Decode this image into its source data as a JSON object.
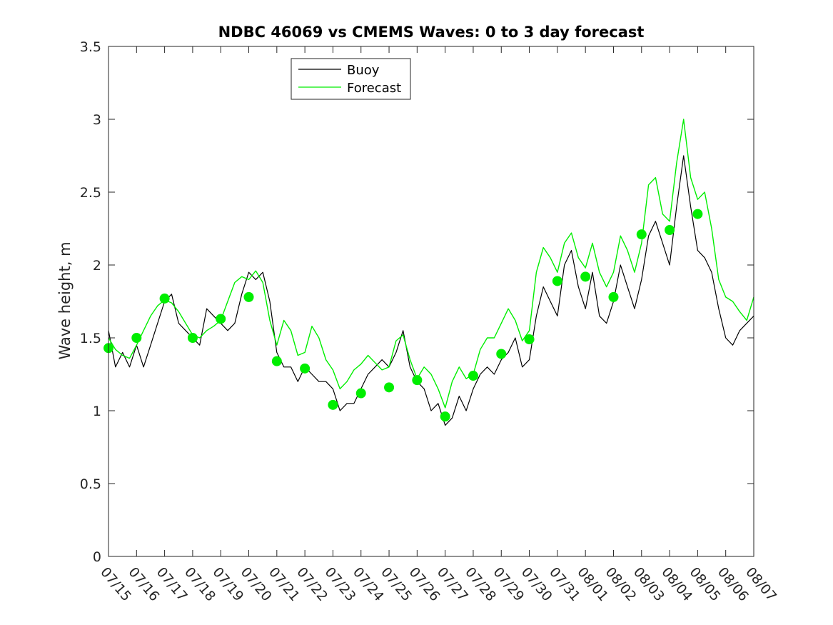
{
  "chart_data": {
    "type": "line",
    "title": "NDBC 46069 vs CMEMS Waves: 0 to 3 day forecast",
    "xlabel": "",
    "ylabel": "Wave height, m",
    "x_tick_labels": [
      "07/15",
      "07/16",
      "07/17",
      "07/18",
      "07/19",
      "07/20",
      "07/21",
      "07/22",
      "07/23",
      "07/24",
      "07/25",
      "07/26",
      "07/27",
      "07/28",
      "07/29",
      "07/30",
      "07/31",
      "08/01",
      "08/02",
      "08/03",
      "08/04",
      "08/05",
      "08/06",
      "08/07"
    ],
    "y_tick_labels": [
      "0",
      "0.5",
      "1",
      "1.5",
      "2",
      "2.5",
      "3",
      "3.5"
    ],
    "xlim_days": [
      0,
      23
    ],
    "ylim": [
      0,
      3.5
    ],
    "grid": false,
    "legend_position": "top-left",
    "colors": {
      "buoy": "#000000",
      "forecast": "#00ee00"
    },
    "series": [
      {
        "name": "Buoy",
        "points": [
          [
            0.0,
            1.55
          ],
          [
            0.25,
            1.3
          ],
          [
            0.5,
            1.4
          ],
          [
            0.75,
            1.3
          ],
          [
            1.0,
            1.45
          ],
          [
            1.25,
            1.3
          ],
          [
            1.5,
            1.45
          ],
          [
            1.75,
            1.6
          ],
          [
            2.0,
            1.75
          ],
          [
            2.25,
            1.8
          ],
          [
            2.5,
            1.6
          ],
          [
            2.75,
            1.55
          ],
          [
            3.0,
            1.5
          ],
          [
            3.25,
            1.45
          ],
          [
            3.5,
            1.7
          ],
          [
            3.75,
            1.65
          ],
          [
            4.0,
            1.6
          ],
          [
            4.25,
            1.55
          ],
          [
            4.5,
            1.6
          ],
          [
            4.75,
            1.8
          ],
          [
            5.0,
            1.95
          ],
          [
            5.25,
            1.9
          ],
          [
            5.5,
            1.95
          ],
          [
            5.75,
            1.75
          ],
          [
            6.0,
            1.4
          ],
          [
            6.25,
            1.3
          ],
          [
            6.5,
            1.3
          ],
          [
            6.75,
            1.2
          ],
          [
            7.0,
            1.3
          ],
          [
            7.25,
            1.25
          ],
          [
            7.5,
            1.2
          ],
          [
            7.75,
            1.2
          ],
          [
            8.0,
            1.15
          ],
          [
            8.25,
            1.0
          ],
          [
            8.5,
            1.05
          ],
          [
            8.75,
            1.05
          ],
          [
            9.0,
            1.15
          ],
          [
            9.25,
            1.25
          ],
          [
            9.5,
            1.3
          ],
          [
            9.75,
            1.35
          ],
          [
            10.0,
            1.3
          ],
          [
            10.25,
            1.4
          ],
          [
            10.5,
            1.55
          ],
          [
            10.75,
            1.3
          ],
          [
            11.0,
            1.2
          ],
          [
            11.25,
            1.15
          ],
          [
            11.5,
            1.0
          ],
          [
            11.75,
            1.05
          ],
          [
            12.0,
            0.9
          ],
          [
            12.25,
            0.95
          ],
          [
            12.5,
            1.1
          ],
          [
            12.75,
            1.0
          ],
          [
            13.0,
            1.15
          ],
          [
            13.25,
            1.25
          ],
          [
            13.5,
            1.3
          ],
          [
            13.75,
            1.25
          ],
          [
            14.0,
            1.35
          ],
          [
            14.25,
            1.4
          ],
          [
            14.5,
            1.5
          ],
          [
            14.75,
            1.3
          ],
          [
            15.0,
            1.35
          ],
          [
            15.25,
            1.65
          ],
          [
            15.5,
            1.85
          ],
          [
            15.75,
            1.75
          ],
          [
            16.0,
            1.65
          ],
          [
            16.25,
            2.0
          ],
          [
            16.5,
            2.1
          ],
          [
            16.75,
            1.85
          ],
          [
            17.0,
            1.7
          ],
          [
            17.25,
            1.95
          ],
          [
            17.5,
            1.65
          ],
          [
            17.75,
            1.6
          ],
          [
            18.0,
            1.75
          ],
          [
            18.25,
            2.0
          ],
          [
            18.5,
            1.85
          ],
          [
            18.75,
            1.7
          ],
          [
            19.0,
            1.9
          ],
          [
            19.25,
            2.2
          ],
          [
            19.5,
            2.3
          ],
          [
            19.75,
            2.15
          ],
          [
            20.0,
            2.0
          ],
          [
            20.25,
            2.4
          ],
          [
            20.5,
            2.75
          ],
          [
            20.75,
            2.4
          ],
          [
            21.0,
            2.1
          ],
          [
            21.25,
            2.05
          ],
          [
            21.5,
            1.95
          ],
          [
            21.75,
            1.7
          ],
          [
            22.0,
            1.5
          ],
          [
            22.25,
            1.45
          ],
          [
            22.5,
            1.55
          ],
          [
            22.75,
            1.6
          ],
          [
            23.0,
            1.65
          ]
        ]
      },
      {
        "name": "Forecast",
        "points": [
          [
            0.0,
            1.5
          ],
          [
            0.25,
            1.42
          ],
          [
            0.5,
            1.38
          ],
          [
            0.75,
            1.36
          ],
          [
            1.0,
            1.45
          ],
          [
            1.25,
            1.55
          ],
          [
            1.5,
            1.65
          ],
          [
            1.75,
            1.72
          ],
          [
            2.0,
            1.76
          ],
          [
            2.25,
            1.74
          ],
          [
            2.5,
            1.68
          ],
          [
            2.75,
            1.6
          ],
          [
            3.0,
            1.52
          ],
          [
            3.25,
            1.5
          ],
          [
            3.5,
            1.55
          ],
          [
            3.75,
            1.58
          ],
          [
            4.0,
            1.62
          ],
          [
            4.25,
            1.75
          ],
          [
            4.5,
            1.88
          ],
          [
            4.75,
            1.92
          ],
          [
            5.0,
            1.9
          ],
          [
            5.25,
            1.96
          ],
          [
            5.5,
            1.88
          ],
          [
            5.75,
            1.62
          ],
          [
            6.0,
            1.45
          ],
          [
            6.25,
            1.62
          ],
          [
            6.5,
            1.55
          ],
          [
            6.75,
            1.38
          ],
          [
            7.0,
            1.4
          ],
          [
            7.25,
            1.58
          ],
          [
            7.5,
            1.5
          ],
          [
            7.75,
            1.35
          ],
          [
            8.0,
            1.28
          ],
          [
            8.25,
            1.15
          ],
          [
            8.5,
            1.2
          ],
          [
            8.75,
            1.28
          ],
          [
            9.0,
            1.32
          ],
          [
            9.25,
            1.38
          ],
          [
            9.5,
            1.33
          ],
          [
            9.75,
            1.28
          ],
          [
            10.0,
            1.3
          ],
          [
            10.25,
            1.48
          ],
          [
            10.5,
            1.52
          ],
          [
            10.75,
            1.35
          ],
          [
            11.0,
            1.22
          ],
          [
            11.25,
            1.3
          ],
          [
            11.5,
            1.25
          ],
          [
            11.75,
            1.15
          ],
          [
            12.0,
            1.02
          ],
          [
            12.25,
            1.2
          ],
          [
            12.5,
            1.3
          ],
          [
            12.75,
            1.22
          ],
          [
            13.0,
            1.25
          ],
          [
            13.25,
            1.42
          ],
          [
            13.5,
            1.5
          ],
          [
            13.75,
            1.5
          ],
          [
            14.0,
            1.6
          ],
          [
            14.25,
            1.7
          ],
          [
            14.5,
            1.62
          ],
          [
            14.75,
            1.48
          ],
          [
            15.0,
            1.55
          ],
          [
            15.25,
            1.95
          ],
          [
            15.5,
            2.12
          ],
          [
            15.75,
            2.05
          ],
          [
            16.0,
            1.95
          ],
          [
            16.25,
            2.15
          ],
          [
            16.5,
            2.22
          ],
          [
            16.75,
            2.05
          ],
          [
            17.0,
            1.98
          ],
          [
            17.25,
            2.15
          ],
          [
            17.5,
            1.95
          ],
          [
            17.75,
            1.85
          ],
          [
            18.0,
            1.95
          ],
          [
            18.25,
            2.2
          ],
          [
            18.5,
            2.1
          ],
          [
            18.75,
            1.95
          ],
          [
            19.0,
            2.15
          ],
          [
            19.25,
            2.55
          ],
          [
            19.5,
            2.6
          ],
          [
            19.75,
            2.35
          ],
          [
            20.0,
            2.3
          ],
          [
            20.25,
            2.7
          ],
          [
            20.5,
            3.0
          ],
          [
            20.75,
            2.6
          ],
          [
            21.0,
            2.45
          ],
          [
            21.25,
            2.5
          ],
          [
            21.5,
            2.25
          ],
          [
            21.75,
            1.9
          ],
          [
            22.0,
            1.78
          ],
          [
            22.25,
            1.75
          ],
          [
            22.5,
            1.68
          ],
          [
            22.75,
            1.62
          ],
          [
            23.0,
            1.78
          ]
        ],
        "daily_analysis_markers": [
          [
            0,
            1.43
          ],
          [
            1,
            1.5
          ],
          [
            2,
            1.77
          ],
          [
            3,
            1.5
          ],
          [
            4,
            1.63
          ],
          [
            5,
            1.78
          ],
          [
            6,
            1.34
          ],
          [
            7,
            1.29
          ],
          [
            8,
            1.04
          ],
          [
            9,
            1.12
          ],
          [
            10,
            1.16
          ],
          [
            11,
            1.21
          ],
          [
            12,
            0.96
          ],
          [
            13,
            1.24
          ],
          [
            14,
            1.39
          ],
          [
            15,
            1.49
          ],
          [
            16,
            1.89
          ],
          [
            17,
            1.92
          ],
          [
            18,
            1.78
          ],
          [
            19,
            2.21
          ],
          [
            20,
            2.24
          ],
          [
            21,
            2.35
          ]
        ]
      }
    ]
  }
}
